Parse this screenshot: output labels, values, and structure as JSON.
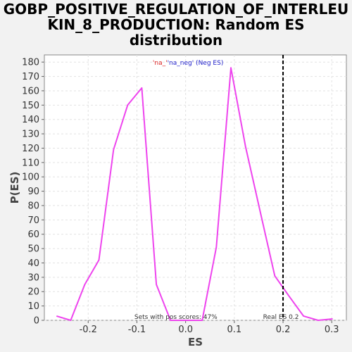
{
  "chart_data": {
    "type": "line",
    "title_lines": [
      "GOBP_POSITIVE_REGULATION_OF_INTERLEU",
      "KIN_8_PRODUCTION: Random ES",
      "distribution"
    ],
    "xlabel": "ES",
    "ylabel": "P(ES)",
    "xlim": [
      -0.29,
      0.33
    ],
    "ylim": [
      0,
      185
    ],
    "xticks": [
      -0.2,
      -0.1,
      0.0,
      0.1,
      0.2,
      0.3
    ],
    "xtick_labels": [
      "-0.2",
      "-0.1",
      "0.0",
      "0.1",
      "0.2",
      "0.3"
    ],
    "yticks": [
      0,
      10,
      20,
      30,
      40,
      50,
      60,
      70,
      80,
      90,
      100,
      110,
      120,
      130,
      140,
      150,
      160,
      170,
      180
    ],
    "ytick_labels": [
      "0",
      "10",
      "20",
      "30",
      "40",
      "50",
      "60",
      "70",
      "80",
      "90",
      "100",
      "110",
      "120",
      "130",
      "140",
      "150",
      "160",
      "170",
      "180"
    ],
    "grid": true,
    "series": [
      {
        "color": "#ee44ee",
        "x": [
          -0.265,
          -0.236,
          -0.207,
          -0.178,
          -0.148,
          -0.119,
          -0.09,
          -0.06,
          -0.031,
          -0.002,
          0.034,
          0.063,
          0.093,
          0.123,
          0.153,
          0.183,
          0.212,
          0.242,
          0.272,
          0.302
        ],
        "y": [
          3,
          0,
          25,
          42,
          119,
          150,
          162,
          25,
          0,
          0,
          0,
          51,
          176,
          121,
          76,
          31,
          17,
          3,
          0,
          1
        ]
      }
    ],
    "real_es": {
      "x": 0.2,
      "label": "Real ES 0.2"
    },
    "annotation_top": {
      "part1": "'na_'",
      "part2": "'na_neg' (Neg ES)"
    },
    "annotation_bottom": "Sets with pos scores: 47%",
    "colors": {
      "line": "#ee44ee",
      "real_es_line": "#000000",
      "annotation_part1": "#dd2222",
      "annotation_part2": "#2222cc"
    }
  }
}
